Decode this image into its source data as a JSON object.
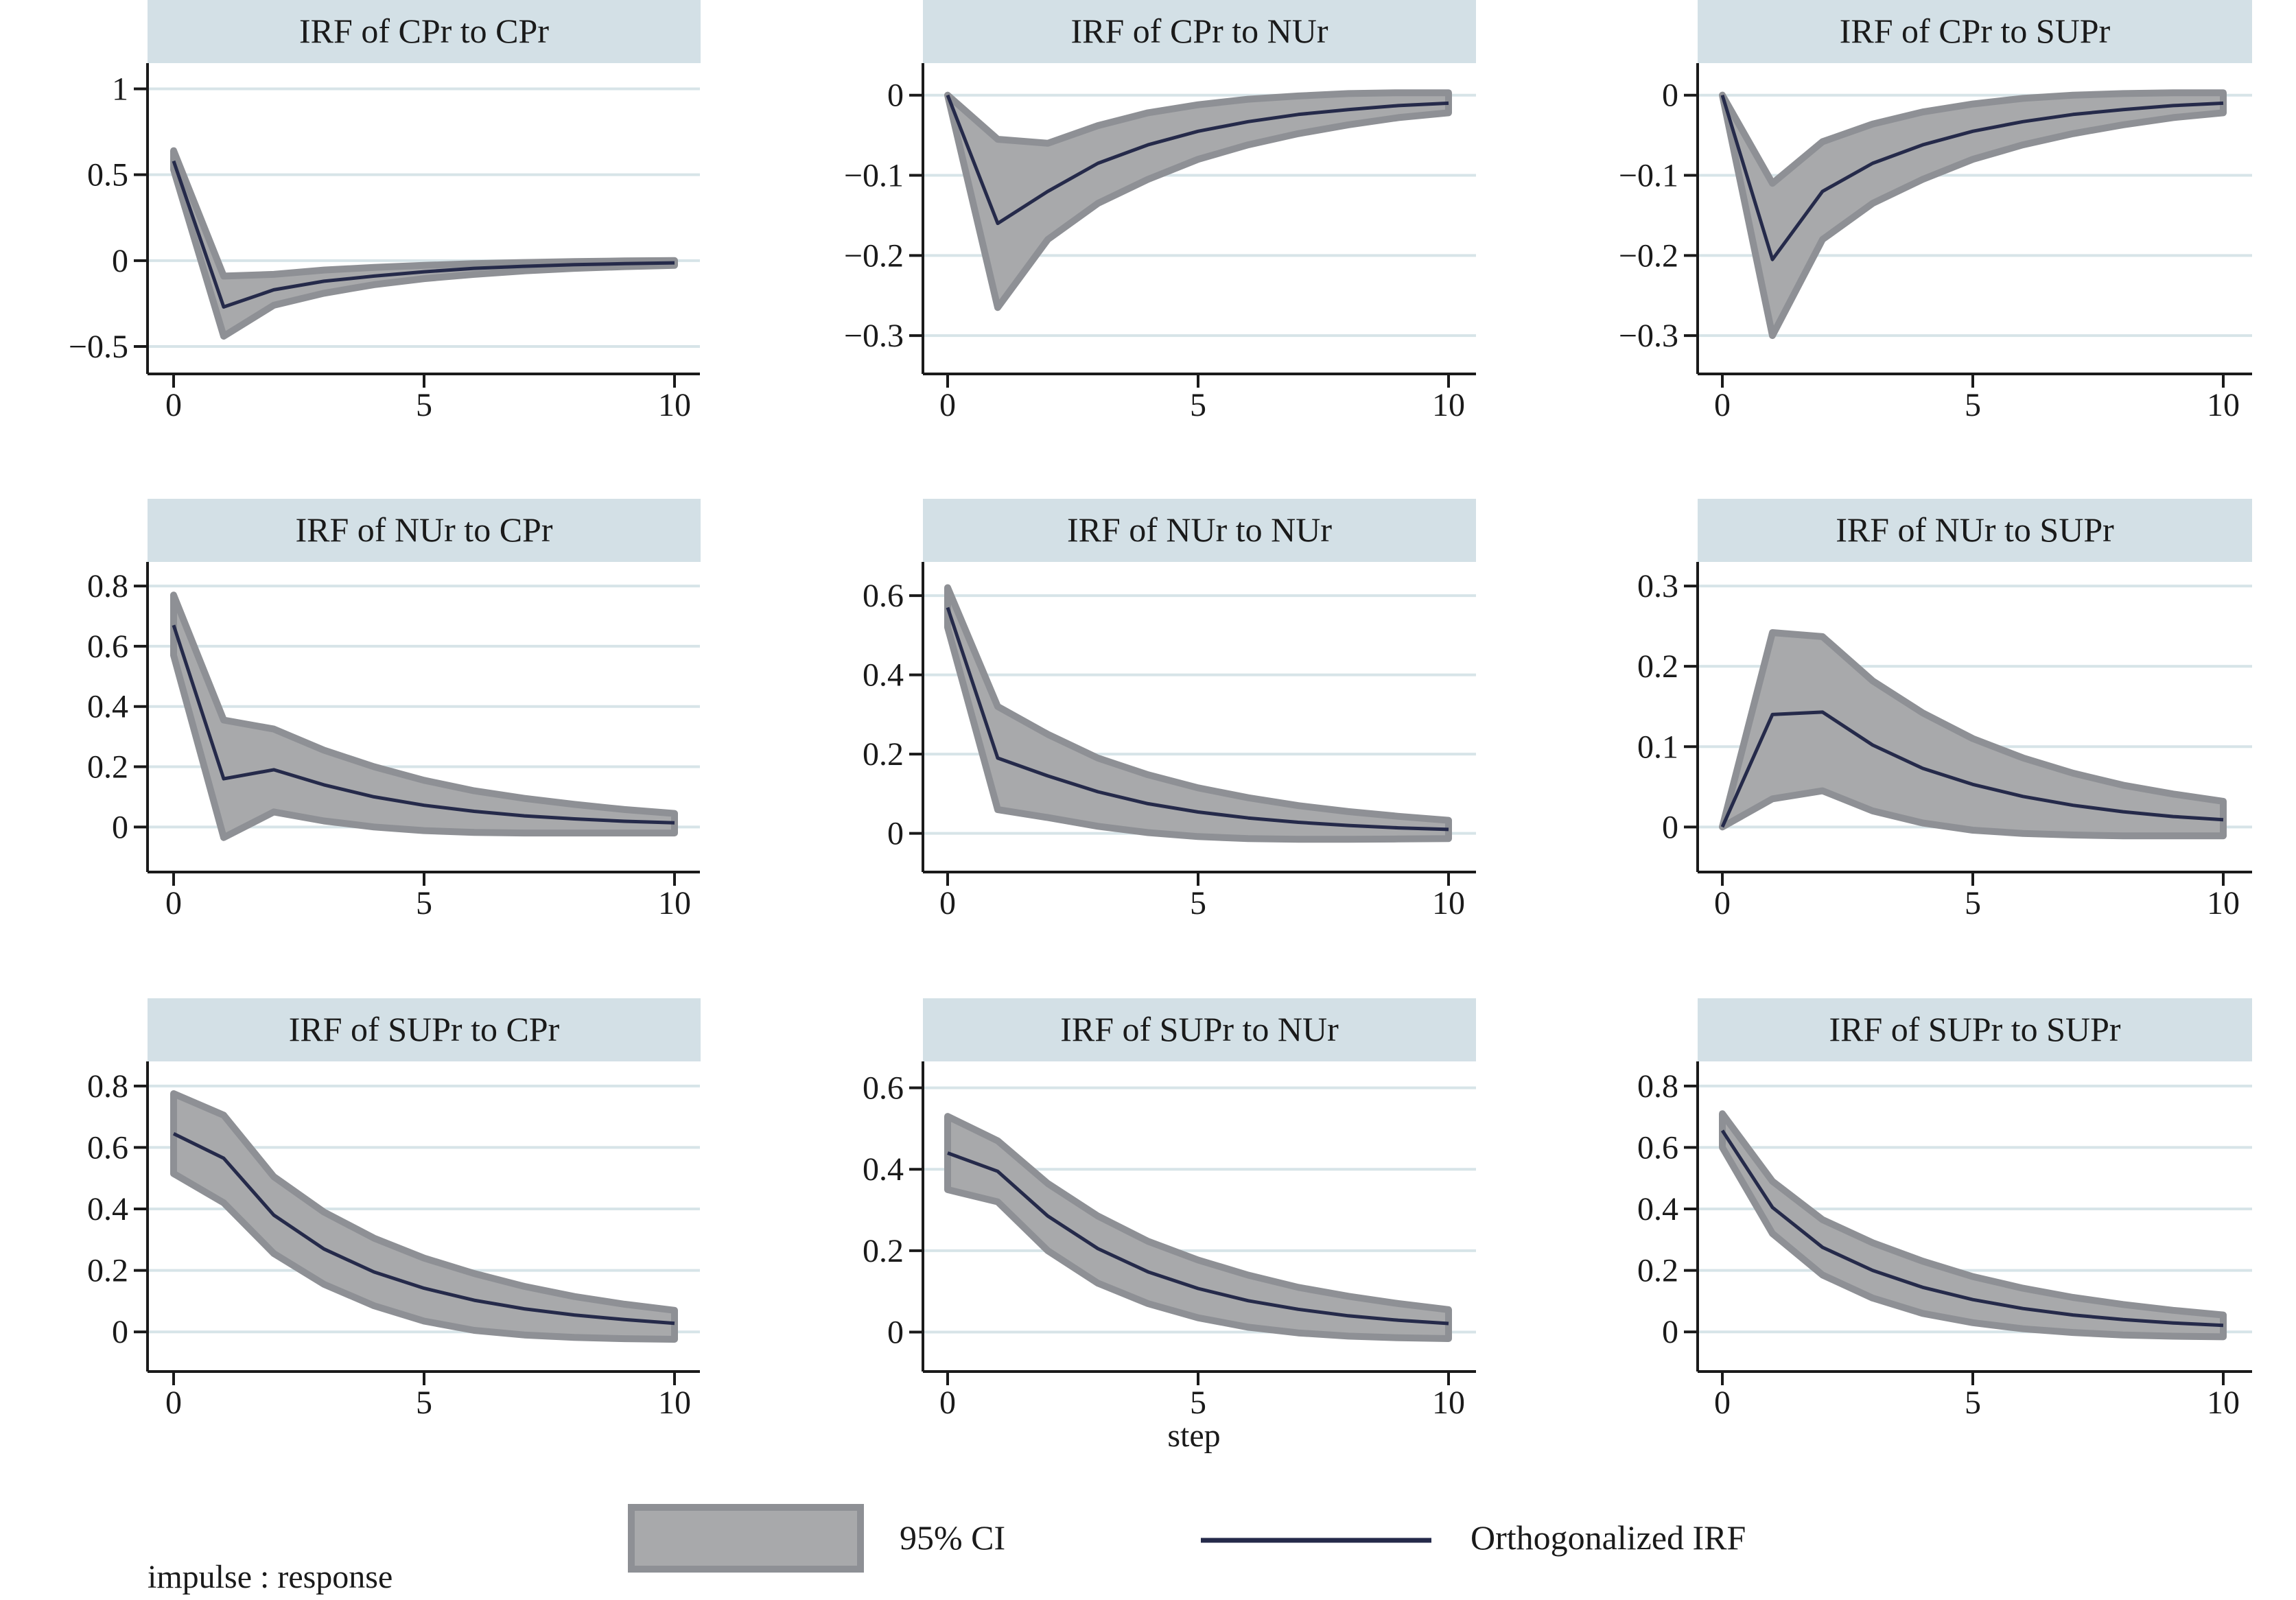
{
  "figure": {
    "xlabel": "step",
    "note": "impulse : response",
    "legend": {
      "ci_label": "95% CI",
      "irf_label": "Orthogonalized IRF"
    },
    "colors": {
      "band_fill": "#a8a9ab",
      "band_stroke": "#8e9095",
      "line": "#252a4a",
      "header_bg": "#d3e0e6",
      "grid": "#d7e4e8",
      "axis": "#1a1a1a"
    }
  },
  "chart_data": [
    {
      "type": "area",
      "title": "IRF of CPr to CPr",
      "xlim": [
        0,
        10
      ],
      "ylim": [
        -0.6,
        1.15
      ],
      "xticks": [
        0,
        5,
        10
      ],
      "yticks": [
        -0.5,
        0,
        0.5,
        1
      ],
      "ytick_labels": [
        "−0.5",
        "0",
        "0.5",
        "1"
      ],
      "x": [
        0,
        1,
        2,
        3,
        4,
        5,
        6,
        7,
        8,
        9,
        10
      ],
      "series": [
        {
          "name": "Orthogonalized IRF",
          "values": [
            0.58,
            -0.27,
            -0.17,
            -0.12,
            -0.09,
            -0.065,
            -0.045,
            -0.033,
            -0.024,
            -0.018,
            -0.013
          ]
        },
        {
          "name": "95% CI lower",
          "values": [
            0.53,
            -0.44,
            -0.26,
            -0.19,
            -0.14,
            -0.105,
            -0.08,
            -0.06,
            -0.045,
            -0.035,
            -0.028
          ]
        },
        {
          "name": "95% CI upper",
          "values": [
            0.64,
            -0.09,
            -0.08,
            -0.055,
            -0.04,
            -0.028,
            -0.018,
            -0.011,
            -0.006,
            -0.002,
            0.0
          ]
        }
      ]
    },
    {
      "type": "area",
      "title": "IRF of CPr to NUr",
      "xlim": [
        0,
        10
      ],
      "ylim": [
        -0.335,
        0.04
      ],
      "xticks": [
        0,
        5,
        10
      ],
      "yticks": [
        -0.3,
        -0.2,
        -0.1,
        0
      ],
      "ytick_labels": [
        "−0.3",
        "−0.2",
        "−0.1",
        "0"
      ],
      "x": [
        0,
        1,
        2,
        3,
        4,
        5,
        6,
        7,
        8,
        9,
        10
      ],
      "series": [
        {
          "name": "Orthogonalized IRF",
          "values": [
            0,
            -0.16,
            -0.12,
            -0.085,
            -0.062,
            -0.045,
            -0.033,
            -0.024,
            -0.018,
            -0.013,
            -0.01
          ]
        },
        {
          "name": "95% CI lower",
          "values": [
            0,
            -0.265,
            -0.18,
            -0.135,
            -0.105,
            -0.08,
            -0.062,
            -0.048,
            -0.037,
            -0.028,
            -0.022
          ]
        },
        {
          "name": "95% CI upper",
          "values": [
            0,
            -0.055,
            -0.06,
            -0.038,
            -0.022,
            -0.012,
            -0.005,
            -0.001,
            0.002,
            0.003,
            0.003
          ]
        }
      ]
    },
    {
      "type": "area",
      "title": "IRF of CPr to SUPr",
      "xlim": [
        0,
        10
      ],
      "ylim": [
        -0.335,
        0.04
      ],
      "xticks": [
        0,
        5,
        10
      ],
      "yticks": [
        -0.3,
        -0.2,
        -0.1,
        0
      ],
      "ytick_labels": [
        "−0.3",
        "−0.2",
        "−0.1",
        "0"
      ],
      "x": [
        0,
        1,
        2,
        3,
        4,
        5,
        6,
        7,
        8,
        9,
        10
      ],
      "series": [
        {
          "name": "Orthogonalized IRF",
          "values": [
            0,
            -0.205,
            -0.12,
            -0.085,
            -0.062,
            -0.045,
            -0.033,
            -0.024,
            -0.018,
            -0.013,
            -0.01
          ]
        },
        {
          "name": "95% CI lower",
          "values": [
            0,
            -0.3,
            -0.18,
            -0.135,
            -0.105,
            -0.08,
            -0.062,
            -0.048,
            -0.037,
            -0.028,
            -0.022
          ]
        },
        {
          "name": "95% CI upper",
          "values": [
            0,
            -0.11,
            -0.058,
            -0.036,
            -0.021,
            -0.011,
            -0.004,
            0.0,
            0.002,
            0.003,
            0.003
          ]
        }
      ]
    },
    {
      "type": "area",
      "title": "IRF of NUr to CPr",
      "xlim": [
        0,
        10
      ],
      "ylim": [
        -0.12,
        0.88
      ],
      "xticks": [
        0,
        5,
        10
      ],
      "yticks": [
        0,
        0.2,
        0.4,
        0.6,
        0.8
      ],
      "ytick_labels": [
        "0",
        "0.2",
        "0.4",
        "0.6",
        "0.8"
      ],
      "x": [
        0,
        1,
        2,
        3,
        4,
        5,
        6,
        7,
        8,
        9,
        10
      ],
      "series": [
        {
          "name": "Orthogonalized IRF",
          "values": [
            0.67,
            0.16,
            0.19,
            0.14,
            0.1,
            0.072,
            0.052,
            0.037,
            0.027,
            0.019,
            0.014
          ]
        },
        {
          "name": "95% CI lower",
          "values": [
            0.57,
            -0.035,
            0.05,
            0.02,
            0.0,
            -0.012,
            -0.018,
            -0.02,
            -0.02,
            -0.02,
            -0.02
          ]
        },
        {
          "name": "95% CI upper",
          "values": [
            0.77,
            0.355,
            0.325,
            0.255,
            0.2,
            0.155,
            0.12,
            0.095,
            0.075,
            0.058,
            0.045
          ]
        }
      ]
    },
    {
      "type": "area",
      "title": "IRF of NUr to NUr",
      "xlim": [
        0,
        10
      ],
      "ylim": [
        -0.075,
        0.685
      ],
      "xticks": [
        0,
        5,
        10
      ],
      "yticks": [
        0,
        0.2,
        0.4,
        0.6
      ],
      "ytick_labels": [
        "0",
        "0.2",
        "0.4",
        "0.6"
      ],
      "x": [
        0,
        1,
        2,
        3,
        4,
        5,
        6,
        7,
        8,
        9,
        10
      ],
      "series": [
        {
          "name": "Orthogonalized IRF",
          "values": [
            0.57,
            0.19,
            0.145,
            0.105,
            0.075,
            0.054,
            0.039,
            0.028,
            0.02,
            0.014,
            0.01
          ]
        },
        {
          "name": "95% CI lower",
          "values": [
            0.52,
            0.06,
            0.04,
            0.018,
            0.002,
            -0.008,
            -0.013,
            -0.015,
            -0.015,
            -0.014,
            -0.013
          ]
        },
        {
          "name": "95% CI upper",
          "values": [
            0.62,
            0.32,
            0.25,
            0.19,
            0.148,
            0.115,
            0.09,
            0.07,
            0.055,
            0.043,
            0.033
          ]
        }
      ]
    },
    {
      "type": "area",
      "title": "IRF of NUr to SUPr",
      "xlim": [
        0,
        10
      ],
      "ylim": [
        -0.045,
        0.33
      ],
      "xticks": [
        0,
        5,
        10
      ],
      "yticks": [
        0,
        0.1,
        0.2,
        0.3
      ],
      "ytick_labels": [
        "0",
        "0.1",
        "0.2",
        "0.3"
      ],
      "x": [
        0,
        1,
        2,
        3,
        4,
        5,
        6,
        7,
        8,
        9,
        10
      ],
      "series": [
        {
          "name": "Orthogonalized IRF",
          "values": [
            0,
            0.14,
            0.143,
            0.102,
            0.073,
            0.053,
            0.038,
            0.027,
            0.019,
            0.013,
            0.009
          ]
        },
        {
          "name": "95% CI lower",
          "values": [
            0,
            0.035,
            0.045,
            0.02,
            0.005,
            -0.004,
            -0.008,
            -0.01,
            -0.011,
            -0.011,
            -0.011
          ]
        },
        {
          "name": "95% CI upper",
          "values": [
            0,
            0.242,
            0.237,
            0.182,
            0.142,
            0.11,
            0.086,
            0.067,
            0.052,
            0.041,
            0.032
          ]
        }
      ]
    },
    {
      "type": "area",
      "title": "IRF of SUPr to CPr",
      "xlim": [
        0,
        10
      ],
      "ylim": [
        -0.1,
        0.88
      ],
      "xticks": [
        0,
        5,
        10
      ],
      "yticks": [
        0,
        0.2,
        0.4,
        0.6,
        0.8
      ],
      "ytick_labels": [
        "0",
        "0.2",
        "0.4",
        "0.6",
        "0.8"
      ],
      "x": [
        0,
        1,
        2,
        3,
        4,
        5,
        6,
        7,
        8,
        9,
        10
      ],
      "series": [
        {
          "name": "Orthogonalized IRF",
          "values": [
            0.645,
            0.565,
            0.38,
            0.27,
            0.195,
            0.142,
            0.103,
            0.075,
            0.055,
            0.04,
            0.028
          ]
        },
        {
          "name": "95% CI lower",
          "values": [
            0.515,
            0.42,
            0.255,
            0.155,
            0.085,
            0.035,
            0.005,
            -0.01,
            -0.018,
            -0.022,
            -0.024
          ]
        },
        {
          "name": "95% CI upper",
          "values": [
            0.775,
            0.705,
            0.505,
            0.39,
            0.305,
            0.24,
            0.19,
            0.148,
            0.115,
            0.09,
            0.07
          ]
        }
      ]
    },
    {
      "type": "area",
      "title": "IRF of SUPr to NUr",
      "xlim": [
        0,
        10
      ],
      "ylim": [
        -0.075,
        0.665
      ],
      "xticks": [
        0,
        5,
        10
      ],
      "yticks": [
        0,
        0.2,
        0.4,
        0.6
      ],
      "ytick_labels": [
        "0",
        "0.2",
        "0.4",
        "0.6"
      ],
      "x": [
        0,
        1,
        2,
        3,
        4,
        5,
        6,
        7,
        8,
        9,
        10
      ],
      "series": [
        {
          "name": "Orthogonalized IRF",
          "values": [
            0.44,
            0.395,
            0.285,
            0.205,
            0.148,
            0.107,
            0.077,
            0.056,
            0.04,
            0.029,
            0.021
          ]
        },
        {
          "name": "95% CI lower",
          "values": [
            0.35,
            0.32,
            0.2,
            0.12,
            0.07,
            0.035,
            0.012,
            -0.002,
            -0.01,
            -0.014,
            -0.016
          ]
        },
        {
          "name": "95% CI upper",
          "values": [
            0.53,
            0.47,
            0.365,
            0.285,
            0.223,
            0.177,
            0.14,
            0.11,
            0.088,
            0.07,
            0.055
          ]
        }
      ]
    },
    {
      "type": "area",
      "title": "IRF of SUPr to SUPr",
      "xlim": [
        0,
        10
      ],
      "ylim": [
        -0.1,
        0.88
      ],
      "xticks": [
        0,
        5,
        10
      ],
      "yticks": [
        0,
        0.2,
        0.4,
        0.6,
        0.8
      ],
      "ytick_labels": [
        "0",
        "0.2",
        "0.4",
        "0.6",
        "0.8"
      ],
      "x": [
        0,
        1,
        2,
        3,
        4,
        5,
        6,
        7,
        8,
        9,
        10
      ],
      "series": [
        {
          "name": "Orthogonalized IRF",
          "values": [
            0.655,
            0.405,
            0.275,
            0.2,
            0.145,
            0.105,
            0.076,
            0.055,
            0.04,
            0.029,
            0.021
          ]
        },
        {
          "name": "95% CI lower",
          "values": [
            0.6,
            0.32,
            0.185,
            0.11,
            0.06,
            0.03,
            0.01,
            -0.002,
            -0.01,
            -0.014,
            -0.016
          ]
        },
        {
          "name": "95% CI upper",
          "values": [
            0.71,
            0.49,
            0.365,
            0.29,
            0.23,
            0.18,
            0.142,
            0.112,
            0.089,
            0.07,
            0.055
          ]
        }
      ]
    }
  ]
}
